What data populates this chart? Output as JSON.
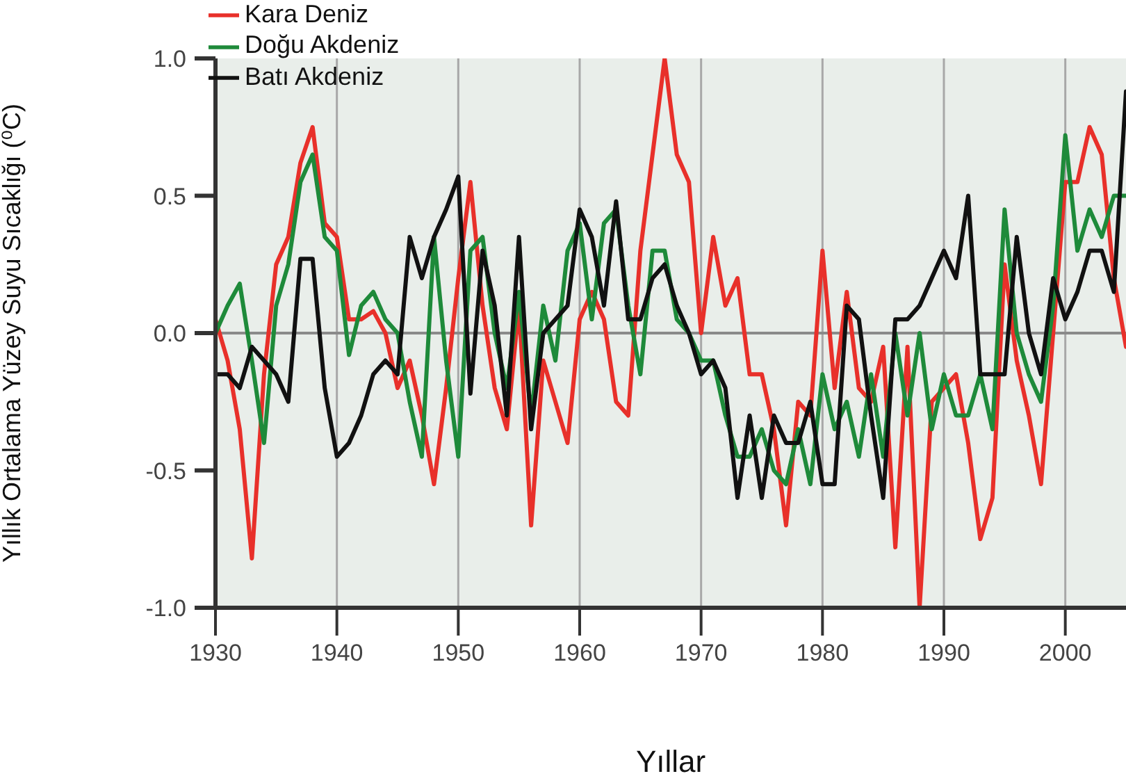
{
  "chart_data": {
    "type": "line",
    "xlabel": "Yıllar",
    "ylabel": "Yıllık Ortalama Yüzey Suyu Sıcaklığı (⁰C)",
    "x": [
      1930,
      1931,
      1932,
      1933,
      1934,
      1935,
      1936,
      1937,
      1938,
      1939,
      1940,
      1941,
      1942,
      1943,
      1944,
      1945,
      1946,
      1947,
      1948,
      1949,
      1950,
      1951,
      1952,
      1953,
      1954,
      1955,
      1956,
      1957,
      1958,
      1959,
      1960,
      1961,
      1962,
      1963,
      1964,
      1965,
      1966,
      1967,
      1968,
      1969,
      1970,
      1971,
      1972,
      1973,
      1974,
      1975,
      1976,
      1977,
      1978,
      1979,
      1980,
      1981,
      1982,
      1983,
      1984,
      1985,
      1986,
      1987,
      1988,
      1989,
      1990,
      1991,
      1992,
      1993,
      1994,
      1995,
      1996,
      1997,
      1998,
      1999,
      2000,
      2001,
      2002,
      2003,
      2004,
      2005
    ],
    "series": [
      {
        "name": "Kara Deniz",
        "color": "#e8302a",
        "values": [
          0.05,
          -0.1,
          -0.35,
          -0.82,
          -0.15,
          0.25,
          0.35,
          0.62,
          0.75,
          0.4,
          0.35,
          0.05,
          0.05,
          0.08,
          0.0,
          -0.2,
          -0.1,
          -0.3,
          -0.55,
          -0.2,
          0.2,
          0.55,
          0.1,
          -0.2,
          -0.35,
          0.1,
          -0.7,
          -0.1,
          -0.25,
          -0.4,
          0.05,
          0.15,
          0.05,
          -0.25,
          -0.3,
          0.3,
          0.65,
          1.0,
          0.65,
          0.55,
          0.0,
          0.35,
          0.1,
          0.2,
          -0.15,
          -0.15,
          -0.35,
          -0.7,
          -0.25,
          -0.3,
          0.3,
          -0.2,
          0.15,
          -0.2,
          -0.25,
          -0.05,
          -0.78,
          -0.05,
          -1.0,
          -0.25,
          -0.2,
          -0.15,
          -0.4,
          -0.75,
          -0.6,
          0.25,
          -0.1,
          -0.3,
          -0.55,
          0.0,
          0.55,
          0.55,
          0.75,
          0.65,
          0.2,
          -0.05
        ]
      },
      {
        "name": "Doğu Akdeniz",
        "color": "#1e8a3a",
        "values": [
          0.0,
          0.1,
          0.18,
          -0.1,
          -0.4,
          0.1,
          0.25,
          0.55,
          0.65,
          0.35,
          0.3,
          -0.08,
          0.1,
          0.15,
          0.05,
          0.0,
          -0.25,
          -0.45,
          0.35,
          -0.1,
          -0.45,
          0.3,
          0.35,
          0.0,
          -0.2,
          0.15,
          -0.3,
          0.1,
          -0.1,
          0.3,
          0.4,
          0.05,
          0.4,
          0.45,
          0.1,
          -0.15,
          0.3,
          0.3,
          0.05,
          0.0,
          -0.1,
          -0.1,
          -0.3,
          -0.45,
          -0.45,
          -0.35,
          -0.5,
          -0.55,
          -0.35,
          -0.55,
          -0.15,
          -0.35,
          -0.25,
          -0.45,
          -0.15,
          -0.45,
          0.0,
          -0.3,
          0.0,
          -0.35,
          -0.15,
          -0.3,
          -0.3,
          -0.15,
          -0.35,
          0.45,
          0.0,
          -0.15,
          -0.25,
          0.1,
          0.72,
          0.3,
          0.45,
          0.35,
          0.5,
          0.5
        ]
      },
      {
        "name": "Batı Akdeniz",
        "color": "#111111",
        "values": [
          -0.15,
          -0.15,
          -0.2,
          -0.05,
          -0.1,
          -0.15,
          -0.25,
          0.27,
          0.27,
          -0.2,
          -0.45,
          -0.4,
          -0.3,
          -0.15,
          -0.1,
          -0.15,
          0.35,
          0.2,
          0.35,
          0.45,
          0.57,
          -0.22,
          0.3,
          0.1,
          -0.3,
          0.35,
          -0.35,
          0.0,
          0.05,
          0.1,
          0.45,
          0.35,
          0.1,
          0.48,
          0.05,
          0.05,
          0.2,
          0.25,
          0.1,
          0.0,
          -0.15,
          -0.1,
          -0.2,
          -0.6,
          -0.3,
          -0.6,
          -0.3,
          -0.4,
          -0.4,
          -0.25,
          -0.55,
          -0.55,
          0.1,
          0.05,
          -0.3,
          -0.6,
          0.05,
          0.05,
          0.1,
          0.2,
          0.3,
          0.2,
          0.5,
          -0.15,
          -0.15,
          -0.15,
          0.35,
          0.0,
          -0.15,
          0.2,
          0.05,
          0.15,
          0.3,
          0.3,
          0.15,
          0.88
        ]
      }
    ],
    "xlim": [
      1930,
      2005
    ],
    "xticks": [
      1930,
      1940,
      1950,
      1960,
      1970,
      1980,
      1990,
      2000
    ],
    "ylim": [
      -1.0,
      1.0
    ],
    "yticks": [
      {
        "value": -1.0,
        "label": "-1.0"
      },
      {
        "value": -0.5,
        "label": "-0.5"
      },
      {
        "value": 0.0,
        "label": "0.0"
      },
      {
        "value": 0.5,
        "label": "0.5"
      },
      {
        "value": 1.0,
        "label": "1.0"
      }
    ],
    "ref_lines": [
      {
        "axis": "y",
        "value": 0,
        "color": "#8a8a8a"
      }
    ],
    "grid": "x",
    "legend": "top left",
    "marker": "none",
    "line_style": "solid"
  }
}
